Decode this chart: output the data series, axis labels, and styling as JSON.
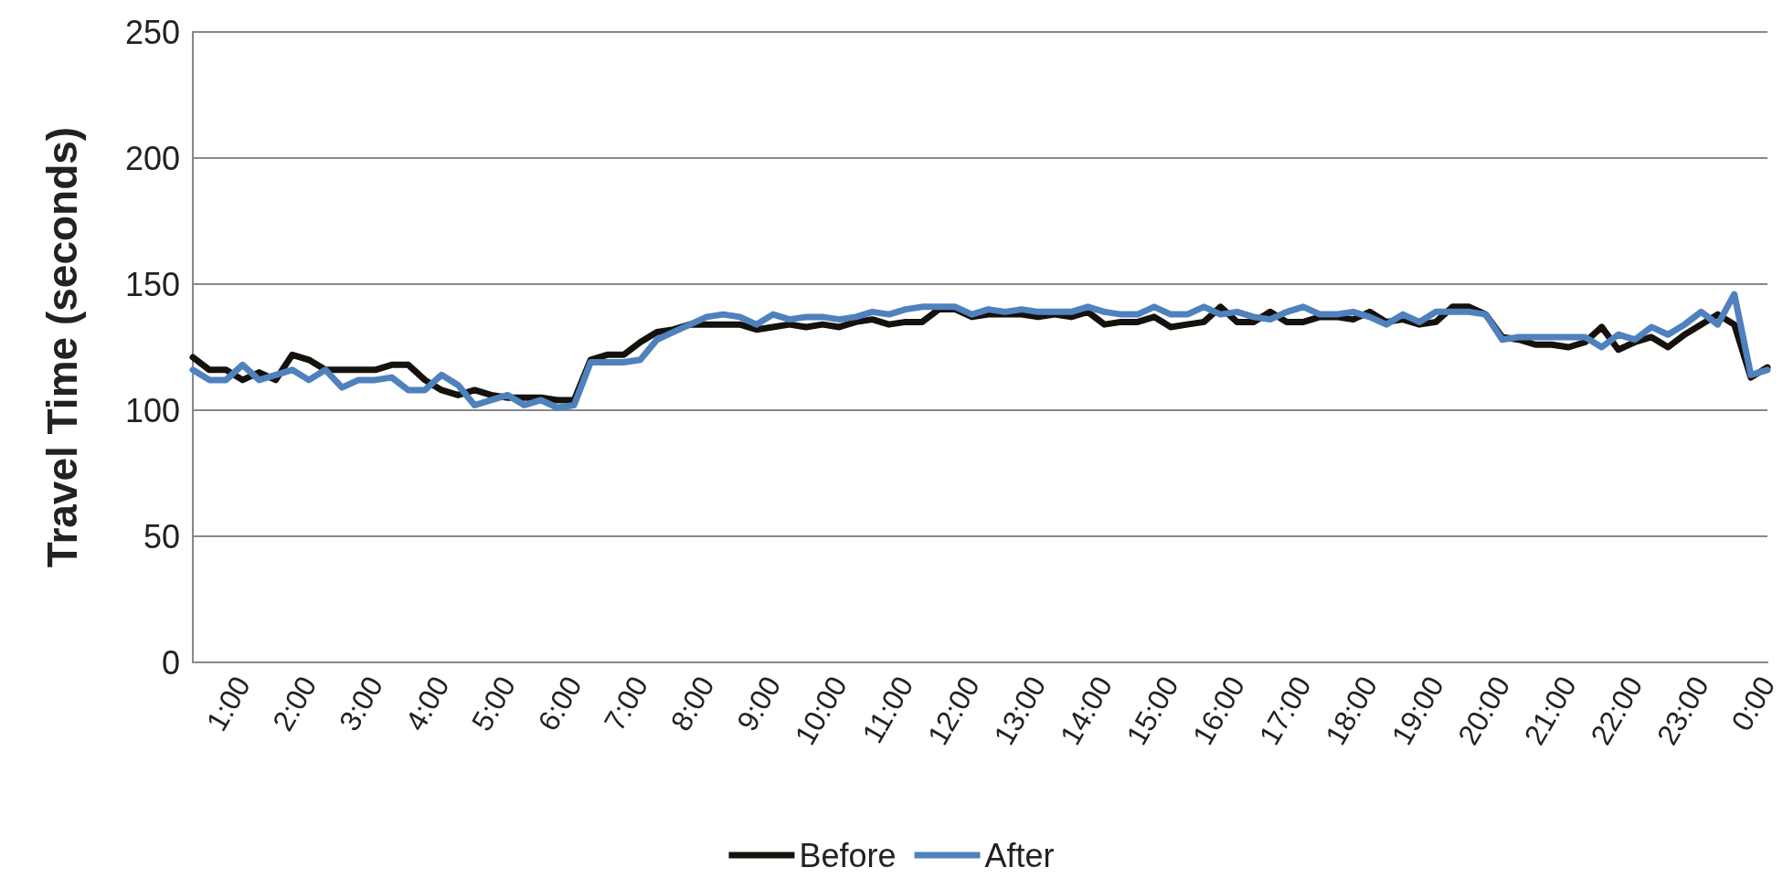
{
  "chart_data": {
    "type": "line",
    "ylabel": "Travel Time (seconds)",
    "categories": [
      null,
      null,
      null,
      "1:00",
      null,
      null,
      null,
      "2:00",
      null,
      null,
      null,
      "3:00",
      null,
      null,
      null,
      "4:00",
      null,
      null,
      null,
      "5:00",
      null,
      null,
      null,
      "6:00",
      null,
      null,
      null,
      "7:00",
      null,
      null,
      null,
      "8:00",
      null,
      null,
      null,
      "9:00",
      null,
      null,
      null,
      "10:00",
      null,
      null,
      null,
      "11:00",
      null,
      null,
      null,
      "12:00",
      null,
      null,
      null,
      "13:00",
      null,
      null,
      null,
      "14:00",
      null,
      null,
      null,
      "15:00",
      null,
      null,
      null,
      "16:00",
      null,
      null,
      null,
      "17:00",
      null,
      null,
      null,
      "18:00",
      null,
      null,
      null,
      "19:00",
      null,
      null,
      null,
      "20:00",
      null,
      null,
      null,
      "21:00",
      null,
      null,
      null,
      "22:00",
      null,
      null,
      null,
      "23:00",
      null,
      null,
      null,
      "0:00"
    ],
    "series": [
      {
        "name": "Before",
        "color": "#15110d",
        "values": [
          121,
          116,
          116,
          112,
          115,
          112,
          122,
          120,
          116,
          116,
          116,
          116,
          118,
          118,
          112,
          108,
          106,
          108,
          106,
          105,
          105,
          105,
          104,
          104,
          120,
          122,
          122,
          127,
          131,
          132,
          134,
          134,
          134,
          134,
          132,
          133,
          134,
          133,
          134,
          133,
          135,
          136,
          134,
          135,
          135,
          140,
          140,
          137,
          138,
          138,
          138,
          137,
          138,
          137,
          139,
          134,
          135,
          135,
          137,
          133,
          134,
          135,
          141,
          135,
          135,
          139,
          135,
          135,
          137,
          137,
          136,
          139,
          135,
          136,
          134,
          135,
          141,
          141,
          138,
          129,
          128,
          126,
          126,
          125,
          127,
          133,
          124,
          127,
          129,
          125,
          130,
          134,
          138,
          134,
          113,
          117
        ]
      },
      {
        "name": "After",
        "color": "#4f81bd",
        "values": [
          116,
          112,
          112,
          118,
          112,
          114,
          116,
          112,
          116,
          109,
          112,
          112,
          113,
          108,
          108,
          114,
          110,
          102,
          104,
          106,
          102,
          104,
          101,
          102,
          119,
          119,
          119,
          120,
          128,
          131,
          134,
          137,
          138,
          137,
          134,
          138,
          136,
          137,
          137,
          136,
          137,
          139,
          138,
          140,
          141,
          141,
          141,
          138,
          140,
          139,
          140,
          139,
          139,
          139,
          141,
          139,
          138,
          138,
          141,
          138,
          138,
          141,
          138,
          139,
          137,
          136,
          139,
          141,
          138,
          138,
          139,
          137,
          134,
          138,
          135,
          139,
          139,
          139,
          138,
          128,
          129,
          129,
          129,
          129,
          129,
          125,
          130,
          128,
          133,
          130,
          134,
          139,
          134,
          146,
          114,
          116
        ]
      }
    ],
    "ylim": [
      0,
      250
    ],
    "yticks": [
      0,
      50,
      100,
      150,
      200,
      250
    ],
    "grid": "y",
    "legend": "bottom",
    "marker": "none",
    "line_style": "solid"
  }
}
